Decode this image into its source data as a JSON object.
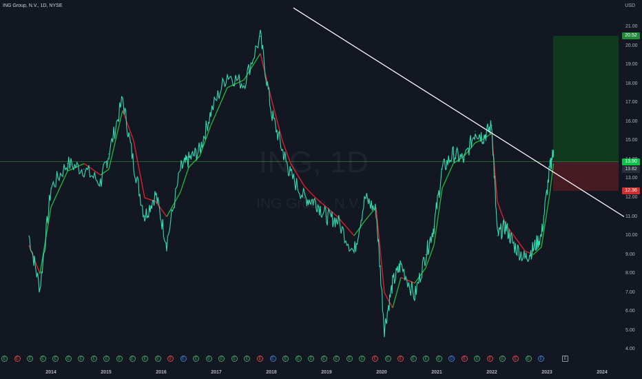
{
  "header": {
    "symbol_title": "ING Group, N.V., 1D, NYSE",
    "currency": "USD"
  },
  "watermark": {
    "ticker": "ING, 1D",
    "name": "ING Group, N.V."
  },
  "colors": {
    "background": "#131722",
    "price_line": "#2fdcb0",
    "ma_up": "#1fb33a",
    "ma_down": "#e21d2d",
    "trendline": "#ffffff",
    "profit_zone": "#0f3a1e",
    "loss_zone": "#461a22",
    "entry_line": "#2e7d32"
  },
  "y_axis": {
    "ticks": [
      "21.00",
      "20.00",
      "19.00",
      "18.00",
      "17.00",
      "16.00",
      "15.00",
      "14.00",
      "13.00",
      "12.00",
      "11.00",
      "10.00",
      "9.00",
      "8.00",
      "7.00",
      "6.00",
      "5.00",
      "4.00"
    ]
  },
  "x_axis": {
    "ticks": [
      "2014",
      "2015",
      "2016",
      "2017",
      "2018",
      "2019",
      "2020",
      "2021",
      "2022",
      "2023",
      "2024"
    ]
  },
  "price_labels": {
    "target": "20.52",
    "entry": "13.90",
    "last": "13.82",
    "stop": "12.36"
  },
  "events": [
    {
      "glyph": "E",
      "kind": "green"
    },
    {
      "glyph": "E",
      "kind": "red"
    },
    {
      "glyph": "E",
      "kind": "green"
    },
    {
      "glyph": "E",
      "kind": "green"
    },
    {
      "glyph": "E",
      "kind": "green"
    },
    {
      "glyph": "E",
      "kind": "green"
    },
    {
      "glyph": "E",
      "kind": "green"
    },
    {
      "glyph": "E",
      "kind": "green"
    },
    {
      "glyph": "E",
      "kind": "green"
    },
    {
      "glyph": "E",
      "kind": "green"
    },
    {
      "glyph": "E",
      "kind": "green"
    },
    {
      "glyph": "E",
      "kind": "green"
    },
    {
      "glyph": "E",
      "kind": "green"
    },
    {
      "glyph": "E",
      "kind": "red"
    },
    {
      "glyph": "E",
      "kind": "blue"
    },
    {
      "glyph": "E",
      "kind": "green"
    },
    {
      "glyph": "E",
      "kind": "green"
    },
    {
      "glyph": "E",
      "kind": "green"
    },
    {
      "glyph": "E",
      "kind": "green"
    },
    {
      "glyph": "E",
      "kind": "green"
    },
    {
      "glyph": "E",
      "kind": "red"
    },
    {
      "glyph": "E",
      "kind": "blue"
    },
    {
      "glyph": "E",
      "kind": "green"
    },
    {
      "glyph": "E",
      "kind": "green"
    },
    {
      "glyph": "E",
      "kind": "green"
    },
    {
      "glyph": "E",
      "kind": "green"
    },
    {
      "glyph": "E",
      "kind": "green"
    },
    {
      "glyph": "E",
      "kind": "green"
    },
    {
      "glyph": "E",
      "kind": "green"
    },
    {
      "glyph": "E",
      "kind": "red"
    },
    {
      "glyph": "E",
      "kind": "green"
    },
    {
      "glyph": "E",
      "kind": "red"
    },
    {
      "glyph": "E",
      "kind": "green"
    },
    {
      "glyph": "E",
      "kind": "green"
    },
    {
      "glyph": "E",
      "kind": "green"
    },
    {
      "glyph": "D",
      "kind": "blue"
    },
    {
      "glyph": "E",
      "kind": "red"
    },
    {
      "glyph": "E",
      "kind": "green"
    },
    {
      "glyph": "E",
      "kind": "red"
    },
    {
      "glyph": "E",
      "kind": "green"
    },
    {
      "glyph": "E",
      "kind": "red"
    },
    {
      "glyph": "E",
      "kind": "green"
    },
    {
      "glyph": "E",
      "kind": "blue"
    },
    {
      "glyph": "E",
      "kind": "gray"
    }
  ],
  "chart_data": {
    "type": "line",
    "title": "ING Group, N.V., 1D, NYSE",
    "ylabel": "USD",
    "ylim": [
      4.0,
      21.5
    ],
    "x": [
      2013.6,
      2013.8,
      2014.0,
      2014.3,
      2014.6,
      2014.9,
      2015.05,
      2015.3,
      2015.5,
      2015.7,
      2015.9,
      2016.1,
      2016.35,
      2016.5,
      2016.7,
      2016.9,
      2017.2,
      2017.5,
      2017.8,
      2018.0,
      2018.2,
      2018.35,
      2018.6,
      2018.8,
      2019.0,
      2019.2,
      2019.5,
      2019.7,
      2019.9,
      2020.05,
      2020.2,
      2020.35,
      2020.6,
      2020.8,
      2020.95,
      2021.1,
      2021.3,
      2021.5,
      2021.7,
      2021.85,
      2022.0,
      2022.1,
      2022.25,
      2022.4,
      2022.6,
      2022.75,
      2022.9,
      2023.05,
      2023.12
    ],
    "series": [
      {
        "values": [
          10.0,
          7.2,
          12.5,
          13.8,
          13.5,
          12.8,
          14.3,
          17.2,
          13.8,
          11.0,
          12.2,
          9.6,
          13.5,
          14.0,
          14.5,
          16.5,
          18.5,
          18.0,
          20.5,
          16.5,
          14.5,
          13.2,
          12.0,
          11.8,
          11.0,
          10.8,
          9.1,
          12.0,
          11.3,
          5.1,
          7.5,
          8.5,
          6.8,
          9.0,
          10.5,
          13.5,
          14.3,
          14.0,
          15.5,
          15.2,
          15.8,
          10.0,
          10.5,
          9.5,
          8.8,
          9.3,
          10.0,
          13.5,
          14.5
        ]
      },
      {
        "values": [
          9.5,
          8.0,
          11.5,
          13.4,
          13.8,
          13.2,
          13.5,
          16.6,
          15.0,
          12.0,
          11.8,
          11.0,
          12.3,
          13.6,
          14.2,
          15.8,
          17.8,
          18.2,
          19.6,
          17.2,
          15.0,
          13.8,
          12.6,
          12.0,
          11.5,
          11.0,
          10.0,
          10.8,
          11.5,
          7.0,
          6.2,
          7.8,
          7.5,
          8.3,
          9.5,
          12.5,
          13.8,
          14.2,
          14.9,
          15.1,
          15.4,
          11.8,
          10.6,
          10.0,
          9.2,
          9.0,
          9.4,
          12.2,
          13.8
        ]
      }
    ],
    "trendline": {
      "from": [
        2018.4,
        22.0
      ],
      "to": [
        2024.4,
        11.0
      ]
    },
    "position": {
      "entry": 13.9,
      "target": 20.52,
      "stop": 12.36,
      "last": 13.82
    }
  }
}
